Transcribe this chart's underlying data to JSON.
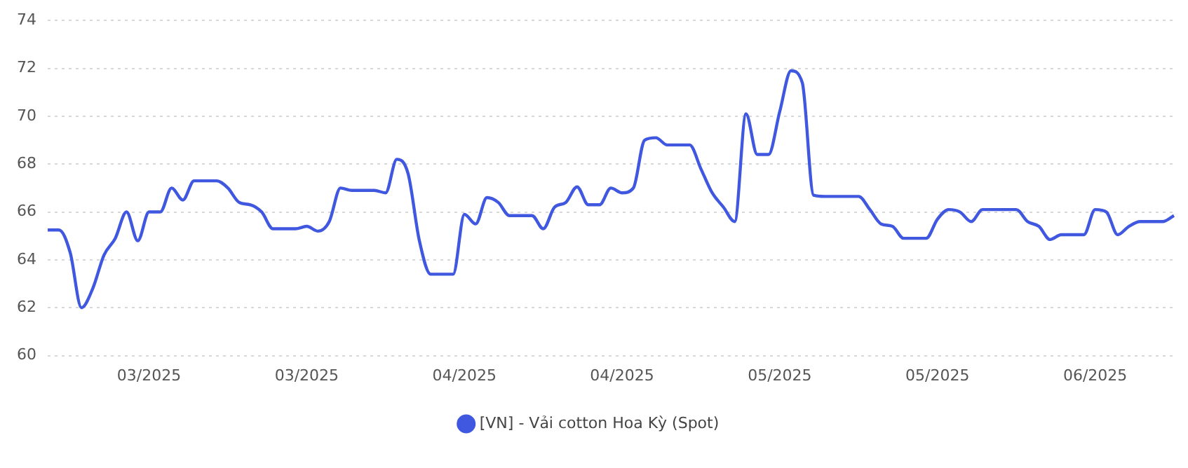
{
  "chart_data": {
    "type": "line",
    "categories": [
      null,
      null,
      null,
      null,
      null,
      null,
      null,
      null,
      null,
      "03/2025",
      null,
      null,
      null,
      null,
      null,
      null,
      null,
      null,
      null,
      null,
      null,
      null,
      null,
      "03/2025",
      null,
      null,
      null,
      null,
      null,
      null,
      null,
      null,
      null,
      null,
      null,
      null,
      null,
      "04/2025",
      null,
      null,
      null,
      null,
      null,
      null,
      null,
      null,
      null,
      null,
      null,
      null,
      null,
      "04/2025",
      null,
      null,
      null,
      null,
      null,
      null,
      null,
      null,
      null,
      null,
      null,
      null,
      null,
      "05/2025",
      null,
      null,
      null,
      null,
      null,
      null,
      null,
      null,
      null,
      null,
      null,
      null,
      null,
      "05/2025",
      null,
      null,
      null,
      null,
      null,
      null,
      null,
      null,
      null,
      null,
      null,
      null,
      null,
      "06/2025",
      null,
      null,
      null,
      null,
      null,
      null,
      null
    ],
    "series": [
      {
        "name": "[VN] - Vải cotton Hoa Kỳ (Spot)",
        "color": "#4058e0",
        "values": [
          65.25,
          65.25,
          64.3,
          62.0,
          62.8,
          64.2,
          64.9,
          66.0,
          64.8,
          66.0,
          66.0,
          67.0,
          66.5,
          67.3,
          67.3,
          67.3,
          67.0,
          66.4,
          66.3,
          66.0,
          65.3,
          65.3,
          65.3,
          65.4,
          65.2,
          65.6,
          67.0,
          66.9,
          66.9,
          66.9,
          66.8,
          68.2,
          67.6,
          64.8,
          63.4,
          63.4,
          63.4,
          65.9,
          65.5,
          66.6,
          66.4,
          65.85,
          65.85,
          65.85,
          65.3,
          66.2,
          66.4,
          67.05,
          66.3,
          66.3,
          67.0,
          66.8,
          67.0,
          69.0,
          69.1,
          68.8,
          68.8,
          68.8,
          67.8,
          66.8,
          66.2,
          65.6,
          70.1,
          68.4,
          68.4,
          70.2,
          71.9,
          71.4,
          66.7,
          66.65,
          66.65,
          66.65,
          66.65,
          66.1,
          65.5,
          65.4,
          64.9,
          64.9,
          64.9,
          65.7,
          66.1,
          66.0,
          65.6,
          66.1,
          66.1,
          66.1,
          66.1,
          65.6,
          65.4,
          64.85,
          65.05,
          65.05,
          65.05,
          66.1,
          66.0,
          65.05,
          65.4,
          65.6,
          65.6,
          65.6,
          65.85
        ]
      }
    ],
    "ylim": [
      60,
      74
    ],
    "yticks": [
      60,
      62,
      64,
      66,
      68,
      70,
      72,
      74
    ],
    "grid": "y",
    "legend": "bottom",
    "marker": "none",
    "line_style": "solid"
  }
}
